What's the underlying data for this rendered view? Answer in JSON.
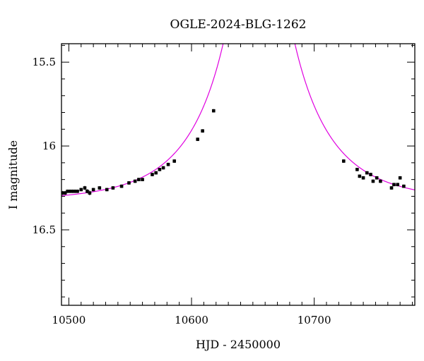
{
  "chart_data": {
    "type": "scatter",
    "title": "OGLE-2024-BLG-1262",
    "xlabel": "HJD - 2450000",
    "ylabel": "I magnitude",
    "xlim": [
      10494,
      10782
    ],
    "ylim": [
      16.95,
      15.39
    ],
    "y_inverted": true,
    "xticks": [
      10500,
      10600,
      10700
    ],
    "yticks": [
      15.5,
      16.0,
      16.5
    ],
    "grid": false,
    "colors": {
      "data": "#000000",
      "model": "#e000e0",
      "axes": "#000000"
    },
    "series": [
      {
        "kind": "points",
        "x": [
          10495,
          10497,
          10499,
          10501,
          10503,
          10505,
          10507,
          10510,
          10513,
          10515,
          10517,
          10520,
          10525,
          10531,
          10536,
          10543,
          10549,
          10554,
          10557,
          10560,
          10568,
          10571,
          10574,
          10577,
          10581,
          10586,
          10605,
          10609,
          10618,
          10724,
          10735,
          10737,
          10740,
          10743,
          10746,
          10748,
          10751,
          10754,
          10763,
          10765,
          10768,
          10770,
          10773
        ],
        "y": [
          16.28,
          16.28,
          16.27,
          16.27,
          16.27,
          16.27,
          16.27,
          16.26,
          16.25,
          16.27,
          16.28,
          16.26,
          16.25,
          16.26,
          16.25,
          16.24,
          16.22,
          16.21,
          16.2,
          16.2,
          16.17,
          16.16,
          16.14,
          16.13,
          16.11,
          16.09,
          15.96,
          15.91,
          15.79,
          16.09,
          16.14,
          16.18,
          16.19,
          16.16,
          16.17,
          16.21,
          16.19,
          16.21,
          16.25,
          16.23,
          16.23,
          16.19,
          16.24
        ],
        "yerr": [
          0.012,
          0.012,
          0.01,
          0.01,
          0.01,
          0.01,
          0.01,
          0.01,
          0.012,
          0.012,
          0.014,
          0.01,
          0.01,
          0.01,
          0.01,
          0.01,
          0.01,
          0.01,
          0.01,
          0.01,
          0.01,
          0.01,
          0.01,
          0.01,
          0.01,
          0.01,
          0.01,
          0.01,
          0.01,
          0.01,
          0.01,
          0.01,
          0.01,
          0.01,
          0.01,
          0.01,
          0.01,
          0.01,
          0.01,
          0.01,
          0.01,
          0.01,
          0.01
        ]
      },
      {
        "kind": "line",
        "model": "paczynski",
        "t0": 10655,
        "tE": 65,
        "u0": 0.045,
        "I_base": 16.33
      }
    ]
  }
}
